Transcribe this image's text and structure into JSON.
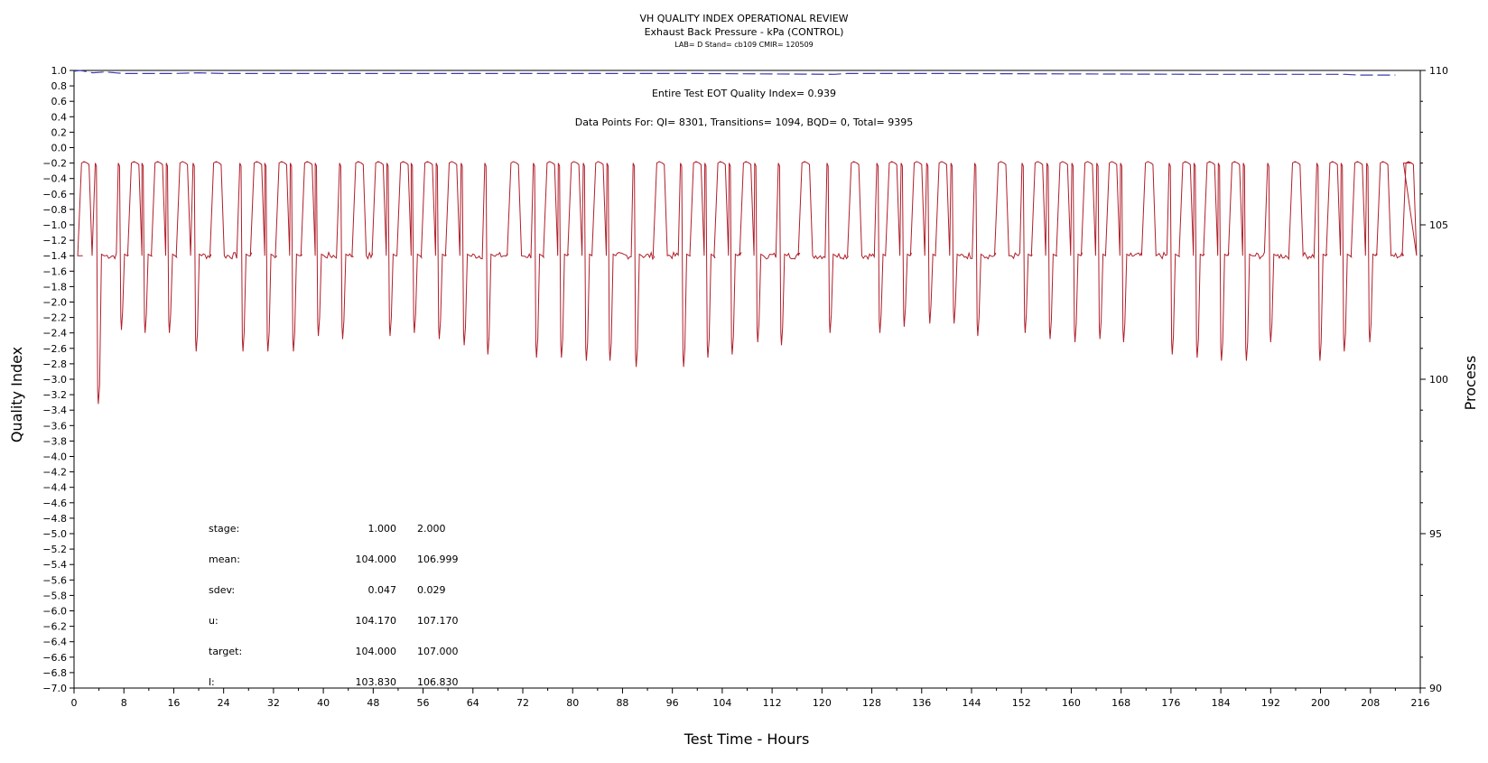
{
  "chart_data": {
    "type": "line",
    "title": "VH QUALITY INDEX OPERATIONAL REVIEW",
    "subtitle": "Exhaust Back Pressure - kPa (CONTROL)",
    "subtitle2": "LAB= D Stand= cb109 CMIR= 120509",
    "xlabel": "Test Time - Hours",
    "ylabel_left": "Quality Index",
    "ylabel_right": "Process",
    "xlim": [
      0,
      216
    ],
    "ylim_left": [
      -7.0,
      1.0
    ],
    "ylim_right": [
      90,
      110
    ],
    "x_ticks": [
      "0",
      "8",
      "16",
      "24",
      "32",
      "40",
      "48",
      "56",
      "64",
      "72",
      "80",
      "88",
      "96",
      "104",
      "112",
      "120",
      "128",
      "136",
      "144",
      "152",
      "160",
      "168",
      "176",
      "184",
      "192",
      "200",
      "208",
      "216"
    ],
    "y_left_ticks": [
      "1.0",
      "0.8",
      "0.6",
      "0.4",
      "0.2",
      "0.0",
      "-0.2",
      "-0.4",
      "-0.6",
      "-0.8",
      "-1.0",
      "-1.2",
      "-1.4",
      "-1.6",
      "-1.8",
      "-2.0",
      "-2.2",
      "-2.4",
      "-2.6",
      "-2.8",
      "-3.0",
      "-3.2",
      "-3.4",
      "-3.6",
      "-3.8",
      "-4.0",
      "-4.2",
      "-4.4",
      "-4.6",
      "-4.8",
      "-5.0",
      "-5.2",
      "-5.4",
      "-5.6",
      "-5.8",
      "-6.0",
      "-6.2",
      "-6.4",
      "-6.6",
      "-6.8",
      "-7.0"
    ],
    "y_right_ticks": [
      "110",
      "105",
      "100",
      "95",
      "90"
    ],
    "annotations": [
      "Entire Test EOT Quality Index=   0.939",
      "Data Points For: QI=  8301, Transitions=  1094, BQD=     0, Total=  9395"
    ],
    "stats_table": {
      "rows": [
        {
          "label": "stage:",
          "v1": "1.000",
          "v2": "2.000"
        },
        {
          "label": "mean:",
          "v1": "104.000",
          "v2": "106.999"
        },
        {
          "label": "sdev:",
          "v1": "0.047",
          "v2": "0.029"
        },
        {
          "label": "u:",
          "v1": "104.170",
          "v2": "107.170"
        },
        {
          "label": "target:",
          "v1": "104.000",
          "v2": "107.000"
        },
        {
          "label": "l:",
          "v1": "103.830",
          "v2": "106.830"
        }
      ]
    },
    "series": [
      {
        "color": "#3b3bb3",
        "axis": "left",
        "style": "dashed",
        "points": [
          [
            0,
            0.99
          ],
          [
            1,
            1.0
          ],
          [
            3,
            0.97
          ],
          [
            5,
            0.98
          ],
          [
            8,
            0.96
          ],
          [
            16,
            0.96
          ],
          [
            20,
            0.97
          ],
          [
            24,
            0.96
          ],
          [
            60,
            0.96
          ],
          [
            100,
            0.96
          ],
          [
            122,
            0.95
          ],
          [
            124,
            0.96
          ],
          [
            140,
            0.96
          ],
          [
            180,
            0.95
          ],
          [
            204,
            0.95
          ],
          [
            206,
            0.94
          ],
          [
            212,
            0.94
          ]
        ]
      },
      {
        "color": "#b01e2a",
        "axis": "right",
        "style": "solid",
        "low": 104.0,
        "high": 107.0,
        "dip_times": [
          3.9,
          7.6,
          11.4,
          15.3,
          19.6,
          27.1,
          31.1,
          35.2,
          39.2,
          43.1,
          50.7,
          54.6,
          58.6,
          62.6,
          66.4,
          74.2,
          78.2,
          82.2,
          86.0,
          90.2,
          97.8,
          101.7,
          105.6,
          109.7,
          113.5,
          121.3,
          129.3,
          133.2,
          137.3,
          141.2,
          145.0,
          152.6,
          156.6,
          160.6,
          164.6,
          168.4,
          176.2,
          180.2,
          184.1,
          188.1,
          192.0,
          199.9,
          203.8,
          207.9
        ],
        "dip_values": [
          99.2,
          101.6,
          101.5,
          101.5,
          100.9,
          100.9,
          100.9,
          100.9,
          101.4,
          101.3,
          101.4,
          101.5,
          101.3,
          101.1,
          100.8,
          100.7,
          100.7,
          100.6,
          100.6,
          100.4,
          100.4,
          100.7,
          100.8,
          101.2,
          101.1,
          101.5,
          101.5,
          101.7,
          101.8,
          101.8,
          101.4,
          101.5,
          101.3,
          101.2,
          101.3,
          101.2,
          100.8,
          100.7,
          100.6,
          100.6,
          101.2,
          100.6,
          100.9,
          101.2
        ],
        "plateau_times": [
          1.6,
          9.6,
          13.4,
          17.4,
          22.8,
          29.3,
          33.3,
          37.4,
          45.6,
          48.8,
          52.8,
          56.7,
          60.6,
          70.5,
          76.3,
          80.2,
          84.1,
          93.9,
          99.8,
          103.7,
          107.8,
          117.2,
          125.1,
          131.2,
          135.2,
          139.2,
          148.7,
          154.6,
          158.6,
          162.6,
          166.5,
          172.3,
          178.3,
          182.2,
          186.2,
          195.9,
          201.9,
          205.9,
          210.0,
          214.1
        ]
      }
    ]
  }
}
